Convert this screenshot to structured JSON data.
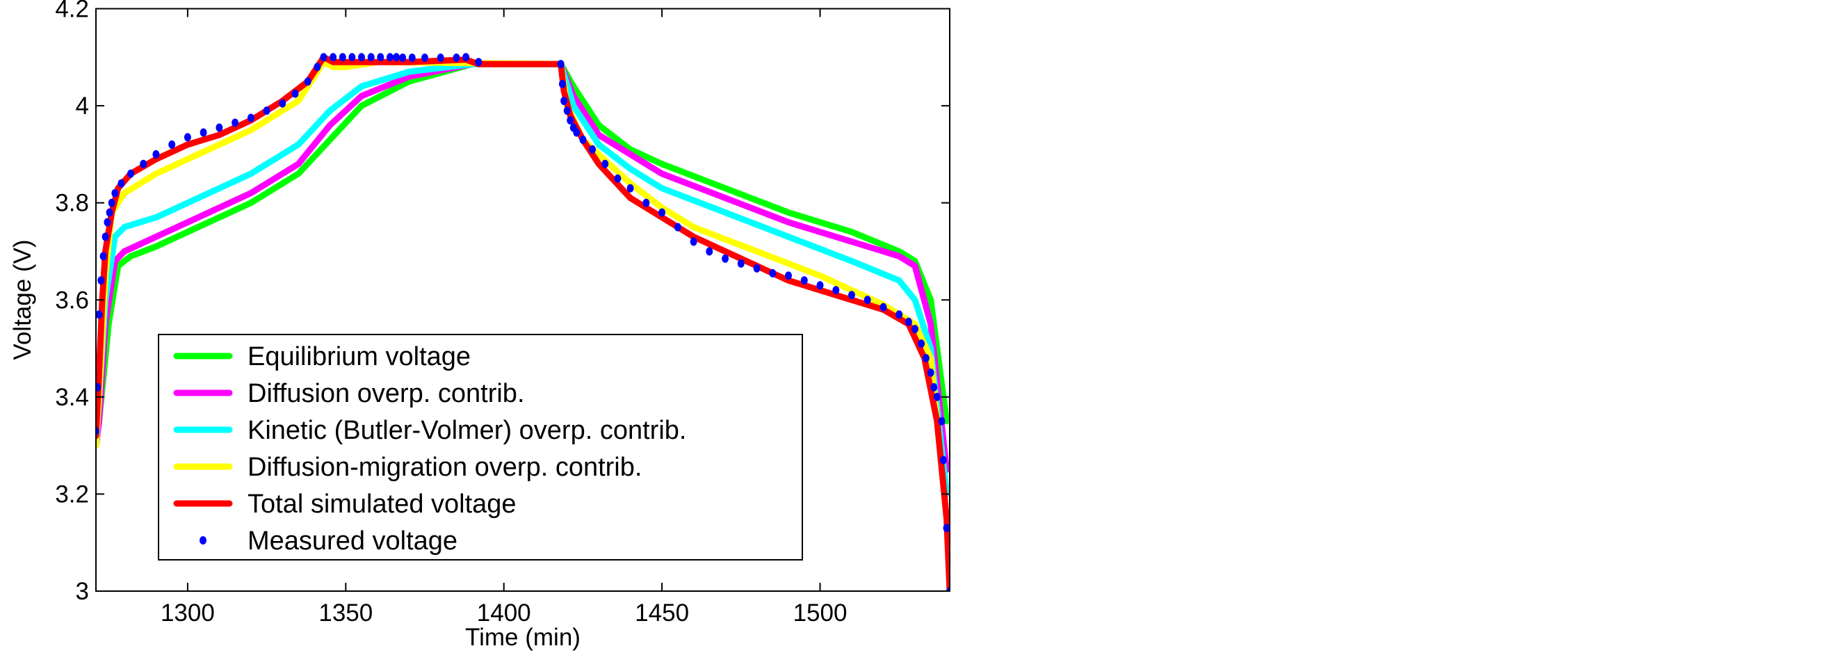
{
  "chart_data": {
    "type": "line",
    "title": "",
    "xlabel": "Time (min)",
    "ylabel": "Voltage (V)",
    "xlim": [
      1271,
      1541
    ],
    "ylim": [
      3.0,
      4.2
    ],
    "xticks": [
      1300,
      1350,
      1400,
      1450,
      1500
    ],
    "yticks": [
      3,
      3.2,
      3.4,
      3.6,
      3.8,
      4,
      4.2
    ],
    "ytick_labels": [
      "3",
      "3.2",
      "3.4",
      "3.6",
      "3.8",
      "4",
      "4.2"
    ],
    "grid": false,
    "legend_position": "lower-left-inside",
    "series": [
      {
        "name": "Equilibrium voltage",
        "color": "#00ff00",
        "style": "line",
        "points": [
          [
            1271,
            3.3
          ],
          [
            1272,
            3.35
          ],
          [
            1275,
            3.55
          ],
          [
            1278,
            3.67
          ],
          [
            1282,
            3.69
          ],
          [
            1290,
            3.71
          ],
          [
            1300,
            3.74
          ],
          [
            1320,
            3.8
          ],
          [
            1335,
            3.86
          ],
          [
            1345,
            3.93
          ],
          [
            1355,
            4.0
          ],
          [
            1370,
            4.05
          ],
          [
            1390,
            4.086
          ],
          [
            1418,
            4.086
          ],
          [
            1422,
            4.04
          ],
          [
            1430,
            3.96
          ],
          [
            1440,
            3.91
          ],
          [
            1450,
            3.88
          ],
          [
            1470,
            3.83
          ],
          [
            1490,
            3.78
          ],
          [
            1510,
            3.74
          ],
          [
            1525,
            3.7
          ],
          [
            1530,
            3.68
          ],
          [
            1535,
            3.6
          ],
          [
            1540,
            3.35
          ]
        ]
      },
      {
        "name": "Diffusion overp. contrib.",
        "color": "#ff00ff",
        "style": "line",
        "points": [
          [
            1271,
            3.3
          ],
          [
            1272,
            3.35
          ],
          [
            1274,
            3.55
          ],
          [
            1277,
            3.68
          ],
          [
            1280,
            3.7
          ],
          [
            1290,
            3.73
          ],
          [
            1300,
            3.76
          ],
          [
            1320,
            3.82
          ],
          [
            1335,
            3.88
          ],
          [
            1345,
            3.96
          ],
          [
            1355,
            4.02
          ],
          [
            1370,
            4.06
          ],
          [
            1390,
            4.086
          ],
          [
            1418,
            4.086
          ],
          [
            1422,
            4.02
          ],
          [
            1430,
            3.94
          ],
          [
            1440,
            3.9
          ],
          [
            1450,
            3.86
          ],
          [
            1470,
            3.81
          ],
          [
            1490,
            3.76
          ],
          [
            1510,
            3.72
          ],
          [
            1525,
            3.69
          ],
          [
            1530,
            3.67
          ],
          [
            1535,
            3.55
          ],
          [
            1540,
            3.25
          ]
        ]
      },
      {
        "name": "Kinetic (Butler-Volmer) overp. contrib.",
        "color": "#00ffff",
        "style": "line",
        "points": [
          [
            1271,
            3.3
          ],
          [
            1272,
            3.4
          ],
          [
            1274,
            3.6
          ],
          [
            1277,
            3.73
          ],
          [
            1280,
            3.75
          ],
          [
            1290,
            3.77
          ],
          [
            1300,
            3.8
          ],
          [
            1320,
            3.86
          ],
          [
            1335,
            3.92
          ],
          [
            1345,
            3.99
          ],
          [
            1355,
            4.04
          ],
          [
            1370,
            4.07
          ],
          [
            1390,
            4.086
          ],
          [
            1418,
            4.086
          ],
          [
            1422,
            4.0
          ],
          [
            1430,
            3.92
          ],
          [
            1440,
            3.87
          ],
          [
            1450,
            3.83
          ],
          [
            1470,
            3.78
          ],
          [
            1490,
            3.73
          ],
          [
            1510,
            3.68
          ],
          [
            1525,
            3.64
          ],
          [
            1530,
            3.6
          ],
          [
            1535,
            3.5
          ],
          [
            1540,
            3.2
          ]
        ]
      },
      {
        "name": "Diffusion-migration overp. contrib.",
        "color": "#ffff00",
        "style": "line",
        "points": [
          [
            1271,
            3.3
          ],
          [
            1272,
            3.4
          ],
          [
            1274,
            3.65
          ],
          [
            1276,
            3.78
          ],
          [
            1280,
            3.82
          ],
          [
            1290,
            3.86
          ],
          [
            1300,
            3.89
          ],
          [
            1320,
            3.95
          ],
          [
            1335,
            4.01
          ],
          [
            1343,
            4.09
          ],
          [
            1346,
            4.08
          ],
          [
            1350,
            4.08
          ],
          [
            1360,
            4.09
          ],
          [
            1390,
            4.088
          ],
          [
            1418,
            4.086
          ],
          [
            1420,
            4.0
          ],
          [
            1425,
            3.93
          ],
          [
            1440,
            3.84
          ],
          [
            1450,
            3.79
          ],
          [
            1460,
            3.75
          ],
          [
            1480,
            3.7
          ],
          [
            1500,
            3.65
          ],
          [
            1520,
            3.59
          ],
          [
            1530,
            3.55
          ],
          [
            1535,
            3.48
          ],
          [
            1540,
            3.15
          ]
        ]
      },
      {
        "name": "Total simulated voltage",
        "color": "#ff0000",
        "style": "line",
        "points": [
          [
            1271,
            3.32
          ],
          [
            1272,
            3.45
          ],
          [
            1273,
            3.6
          ],
          [
            1274,
            3.7
          ],
          [
            1276,
            3.78
          ],
          [
            1278,
            3.83
          ],
          [
            1282,
            3.86
          ],
          [
            1290,
            3.89
          ],
          [
            1300,
            3.92
          ],
          [
            1310,
            3.94
          ],
          [
            1320,
            3.97
          ],
          [
            1330,
            4.01
          ],
          [
            1338,
            4.05
          ],
          [
            1343,
            4.1
          ],
          [
            1346,
            4.09
          ],
          [
            1350,
            4.09
          ],
          [
            1370,
            4.09
          ],
          [
            1388,
            4.095
          ],
          [
            1392,
            4.086
          ],
          [
            1418,
            4.086
          ],
          [
            1419,
            4.03
          ],
          [
            1421,
            3.98
          ],
          [
            1425,
            3.93
          ],
          [
            1430,
            3.88
          ],
          [
            1440,
            3.81
          ],
          [
            1450,
            3.77
          ],
          [
            1460,
            3.73
          ],
          [
            1470,
            3.7
          ],
          [
            1480,
            3.67
          ],
          [
            1490,
            3.64
          ],
          [
            1500,
            3.62
          ],
          [
            1510,
            3.6
          ],
          [
            1520,
            3.58
          ],
          [
            1528,
            3.55
          ],
          [
            1533,
            3.48
          ],
          [
            1537,
            3.35
          ],
          [
            1540,
            3.15
          ],
          [
            1541,
            3.0
          ]
        ]
      },
      {
        "name": "Measured voltage",
        "color": "#0000ff",
        "style": "markers",
        "points": [
          [
            1271,
            3.33
          ],
          [
            1271.5,
            3.42
          ],
          [
            1272,
            3.57
          ],
          [
            1272.6,
            3.64
          ],
          [
            1273.3,
            3.69
          ],
          [
            1274,
            3.73
          ],
          [
            1274.6,
            3.76
          ],
          [
            1275.3,
            3.78
          ],
          [
            1276,
            3.8
          ],
          [
            1277,
            3.82
          ],
          [
            1279,
            3.84
          ],
          [
            1282,
            3.86
          ],
          [
            1286,
            3.88
          ],
          [
            1290,
            3.9
          ],
          [
            1295,
            3.92
          ],
          [
            1300,
            3.935
          ],
          [
            1305,
            3.945
          ],
          [
            1310,
            3.955
          ],
          [
            1315,
            3.965
          ],
          [
            1320,
            3.975
          ],
          [
            1325,
            3.99
          ],
          [
            1330,
            4.005
          ],
          [
            1334,
            4.025
          ],
          [
            1338,
            4.05
          ],
          [
            1341,
            4.08
          ],
          [
            1343,
            4.1
          ],
          [
            1346,
            4.1
          ],
          [
            1349,
            4.1
          ],
          [
            1352,
            4.1
          ],
          [
            1355,
            4.1
          ],
          [
            1358,
            4.1
          ],
          [
            1361,
            4.1
          ],
          [
            1364,
            4.1
          ],
          [
            1366,
            4.1
          ],
          [
            1368,
            4.099
          ],
          [
            1371,
            4.099
          ],
          [
            1375,
            4.099
          ],
          [
            1380,
            4.099
          ],
          [
            1385,
            4.099
          ],
          [
            1388,
            4.1
          ],
          [
            1392,
            4.09
          ],
          [
            1418,
            4.086
          ],
          [
            1418.5,
            4.045
          ],
          [
            1419,
            4.01
          ],
          [
            1420,
            3.99
          ],
          [
            1421,
            3.97
          ],
          [
            1422,
            3.955
          ],
          [
            1423,
            3.945
          ],
          [
            1425,
            3.93
          ],
          [
            1428,
            3.91
          ],
          [
            1432,
            3.88
          ],
          [
            1436,
            3.85
          ],
          [
            1440,
            3.83
          ],
          [
            1445,
            3.8
          ],
          [
            1450,
            3.78
          ],
          [
            1455,
            3.75
          ],
          [
            1460,
            3.72
          ],
          [
            1465,
            3.7
          ],
          [
            1470,
            3.685
          ],
          [
            1475,
            3.675
          ],
          [
            1480,
            3.665
          ],
          [
            1485,
            3.655
          ],
          [
            1490,
            3.65
          ],
          [
            1495,
            3.64
          ],
          [
            1500,
            3.63
          ],
          [
            1505,
            3.62
          ],
          [
            1510,
            3.61
          ],
          [
            1515,
            3.6
          ],
          [
            1520,
            3.585
          ],
          [
            1525,
            3.57
          ],
          [
            1528,
            3.555
          ],
          [
            1530,
            3.54
          ],
          [
            1532,
            3.51
          ],
          [
            1533.5,
            3.48
          ],
          [
            1535,
            3.45
          ],
          [
            1536,
            3.42
          ],
          [
            1537,
            3.4
          ],
          [
            1538.5,
            3.35
          ],
          [
            1539,
            3.27
          ],
          [
            1540,
            3.13
          ],
          [
            1541,
            3.0
          ]
        ]
      }
    ]
  },
  "legend": {
    "items": [
      {
        "label": "Equilibrium voltage",
        "color": "#00ff00",
        "kind": "line"
      },
      {
        "label": "Diffusion overp. contrib.",
        "color": "#ff00ff",
        "kind": "line"
      },
      {
        "label": "Kinetic (Butler-Volmer) overp. contrib.",
        "color": "#00ffff",
        "kind": "line"
      },
      {
        "label": "Diffusion-migration overp. contrib.",
        "color": "#ffff00",
        "kind": "line"
      },
      {
        "label": "Total simulated voltage",
        "color": "#ff0000",
        "kind": "line"
      },
      {
        "label": "Measured voltage",
        "color": "#0000ff",
        "kind": "marker"
      }
    ]
  }
}
